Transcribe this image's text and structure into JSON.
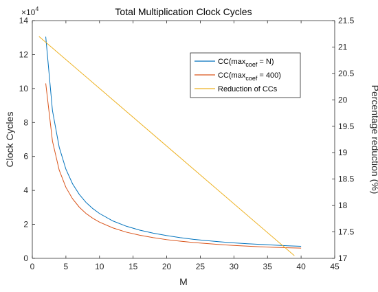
{
  "chart_data": {
    "type": "line",
    "title": "Total Multiplication Clock Cycles",
    "xlabel": "M",
    "ylabel_left": "Clock Cycles",
    "ylabel_right": "Percentage reduction (%)",
    "left_axis_multiplier": {
      "base": "×10",
      "exponent": "4"
    },
    "xlim": [
      0,
      45
    ],
    "ylim_left": [
      0,
      14
    ],
    "ylim_right": [
      17,
      21.5
    ],
    "x_ticks": [
      "0",
      "5",
      "10",
      "15",
      "20",
      "25",
      "30",
      "35",
      "40",
      "45"
    ],
    "y_ticks_left": [
      "0",
      "2",
      "4",
      "6",
      "8",
      "10",
      "12",
      "14"
    ],
    "y_ticks_right": [
      "17",
      "17.5",
      "18",
      "18.5",
      "19",
      "19.5",
      "20",
      "20.5",
      "21",
      "21.5"
    ],
    "grid": false,
    "legend_position": "upper-right",
    "legend": [
      {
        "prefix": "CC(max",
        "sub": "coef",
        "suffix": " = N)"
      },
      {
        "prefix": "CC(max",
        "sub": "coef",
        "suffix": " = 400)"
      },
      {
        "prefix": "Reduction of CCs",
        "sub": "",
        "suffix": ""
      }
    ],
    "series": [
      {
        "axis": "left",
        "color": "#0072BD",
        "x": [
          2,
          3,
          4,
          5,
          6,
          7,
          8,
          9,
          10,
          12,
          14,
          16,
          18,
          20,
          22,
          24,
          26,
          28,
          30,
          32,
          34,
          36,
          38,
          40
        ],
        "y": [
          13.05,
          8.7,
          6.55,
          5.25,
          4.38,
          3.76,
          3.29,
          2.93,
          2.64,
          2.2,
          1.89,
          1.66,
          1.48,
          1.34,
          1.22,
          1.12,
          1.04,
          0.97,
          0.91,
          0.86,
          0.82,
          0.78,
          0.74,
          0.71
        ]
      },
      {
        "axis": "left",
        "color": "#D95319",
        "x": [
          2,
          3,
          4,
          5,
          6,
          7,
          8,
          9,
          10,
          12,
          14,
          16,
          18,
          20,
          22,
          24,
          26,
          28,
          30,
          32,
          34,
          36,
          38,
          40
        ],
        "y": [
          10.3,
          6.9,
          5.2,
          4.18,
          3.5,
          3.01,
          2.64,
          2.36,
          2.13,
          1.79,
          1.54,
          1.36,
          1.22,
          1.1,
          1.01,
          0.93,
          0.87,
          0.81,
          0.76,
          0.72,
          0.68,
          0.65,
          0.62,
          0.6
        ]
      },
      {
        "axis": "right",
        "color": "#EDB120",
        "x": [
          1,
          39
        ],
        "y": [
          21.2,
          17.05
        ]
      }
    ]
  }
}
